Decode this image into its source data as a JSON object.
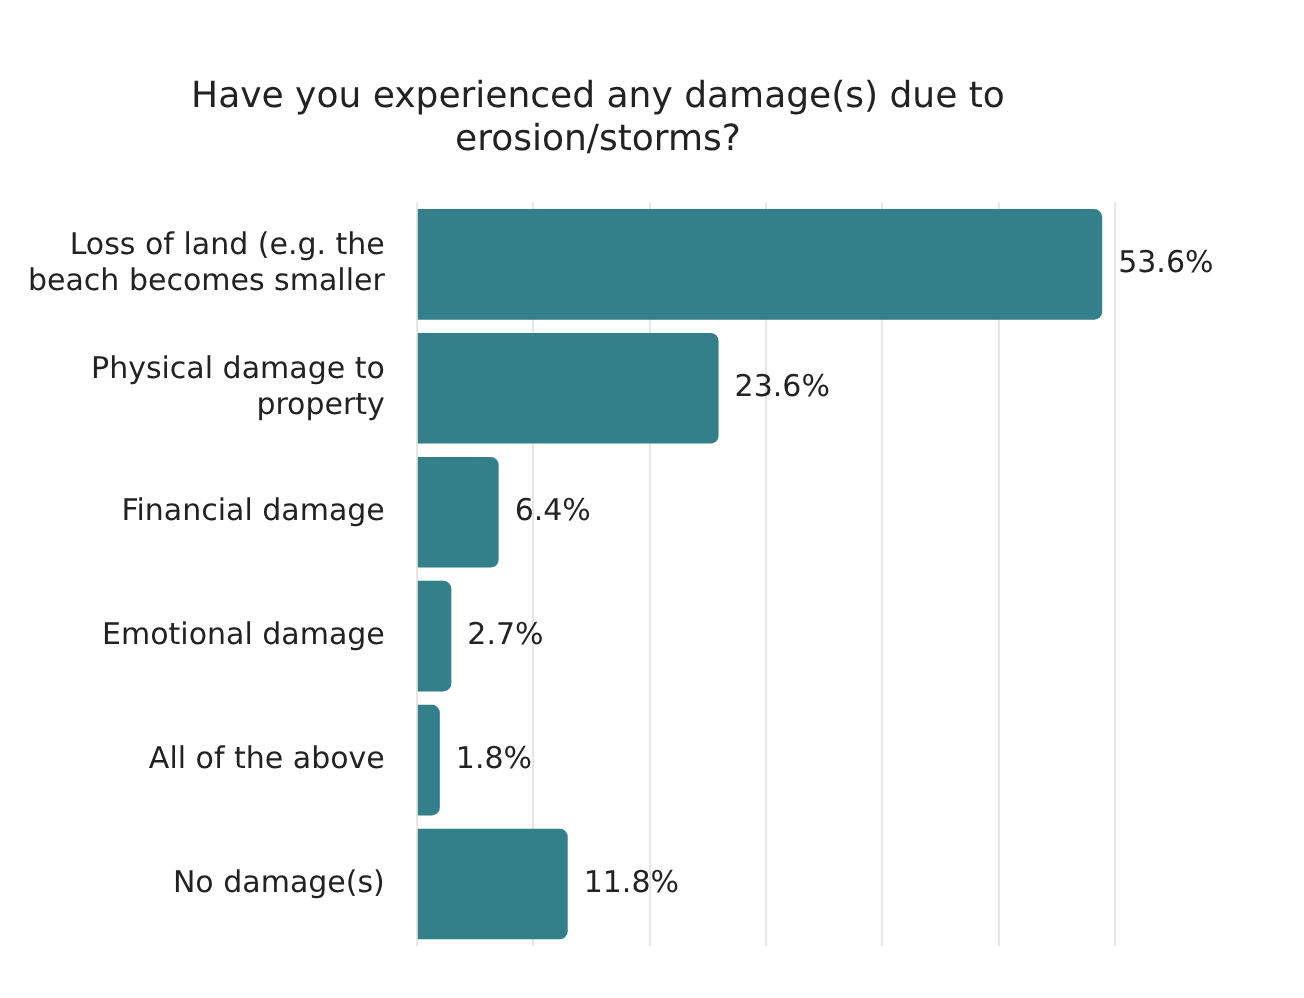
{
  "chart_data": {
    "type": "bar",
    "orientation": "horizontal",
    "title": "Have you experienced any damage(s) due to erosion/storms?",
    "categories": [
      "Loss of land (e.g. the beach becomes smaller",
      "Physical damage to property",
      "Financial damage",
      "Emotional damage",
      "All of the above",
      "No damage(s)"
    ],
    "values": [
      53.6,
      23.6,
      6.4,
      2.7,
      1.8,
      11.8
    ],
    "value_labels": [
      "53.6%",
      "23.6%",
      "6.4%",
      "2.7%",
      "1.8%",
      "11.8%"
    ],
    "color": "#337f8a",
    "xticks": [
      {
        "value": 0,
        "label": null
      },
      {
        "value": 9.1,
        "label": null
      },
      {
        "value": 18.2,
        "label": null
      },
      {
        "value": 27.3,
        "label": null
      },
      {
        "value": 36.4,
        "label": null
      },
      {
        "value": 45.5,
        "label": null
      },
      {
        "value": 54.6,
        "label": null
      }
    ],
    "grid": "x",
    "tick_labels": "y",
    "legend": false
  }
}
